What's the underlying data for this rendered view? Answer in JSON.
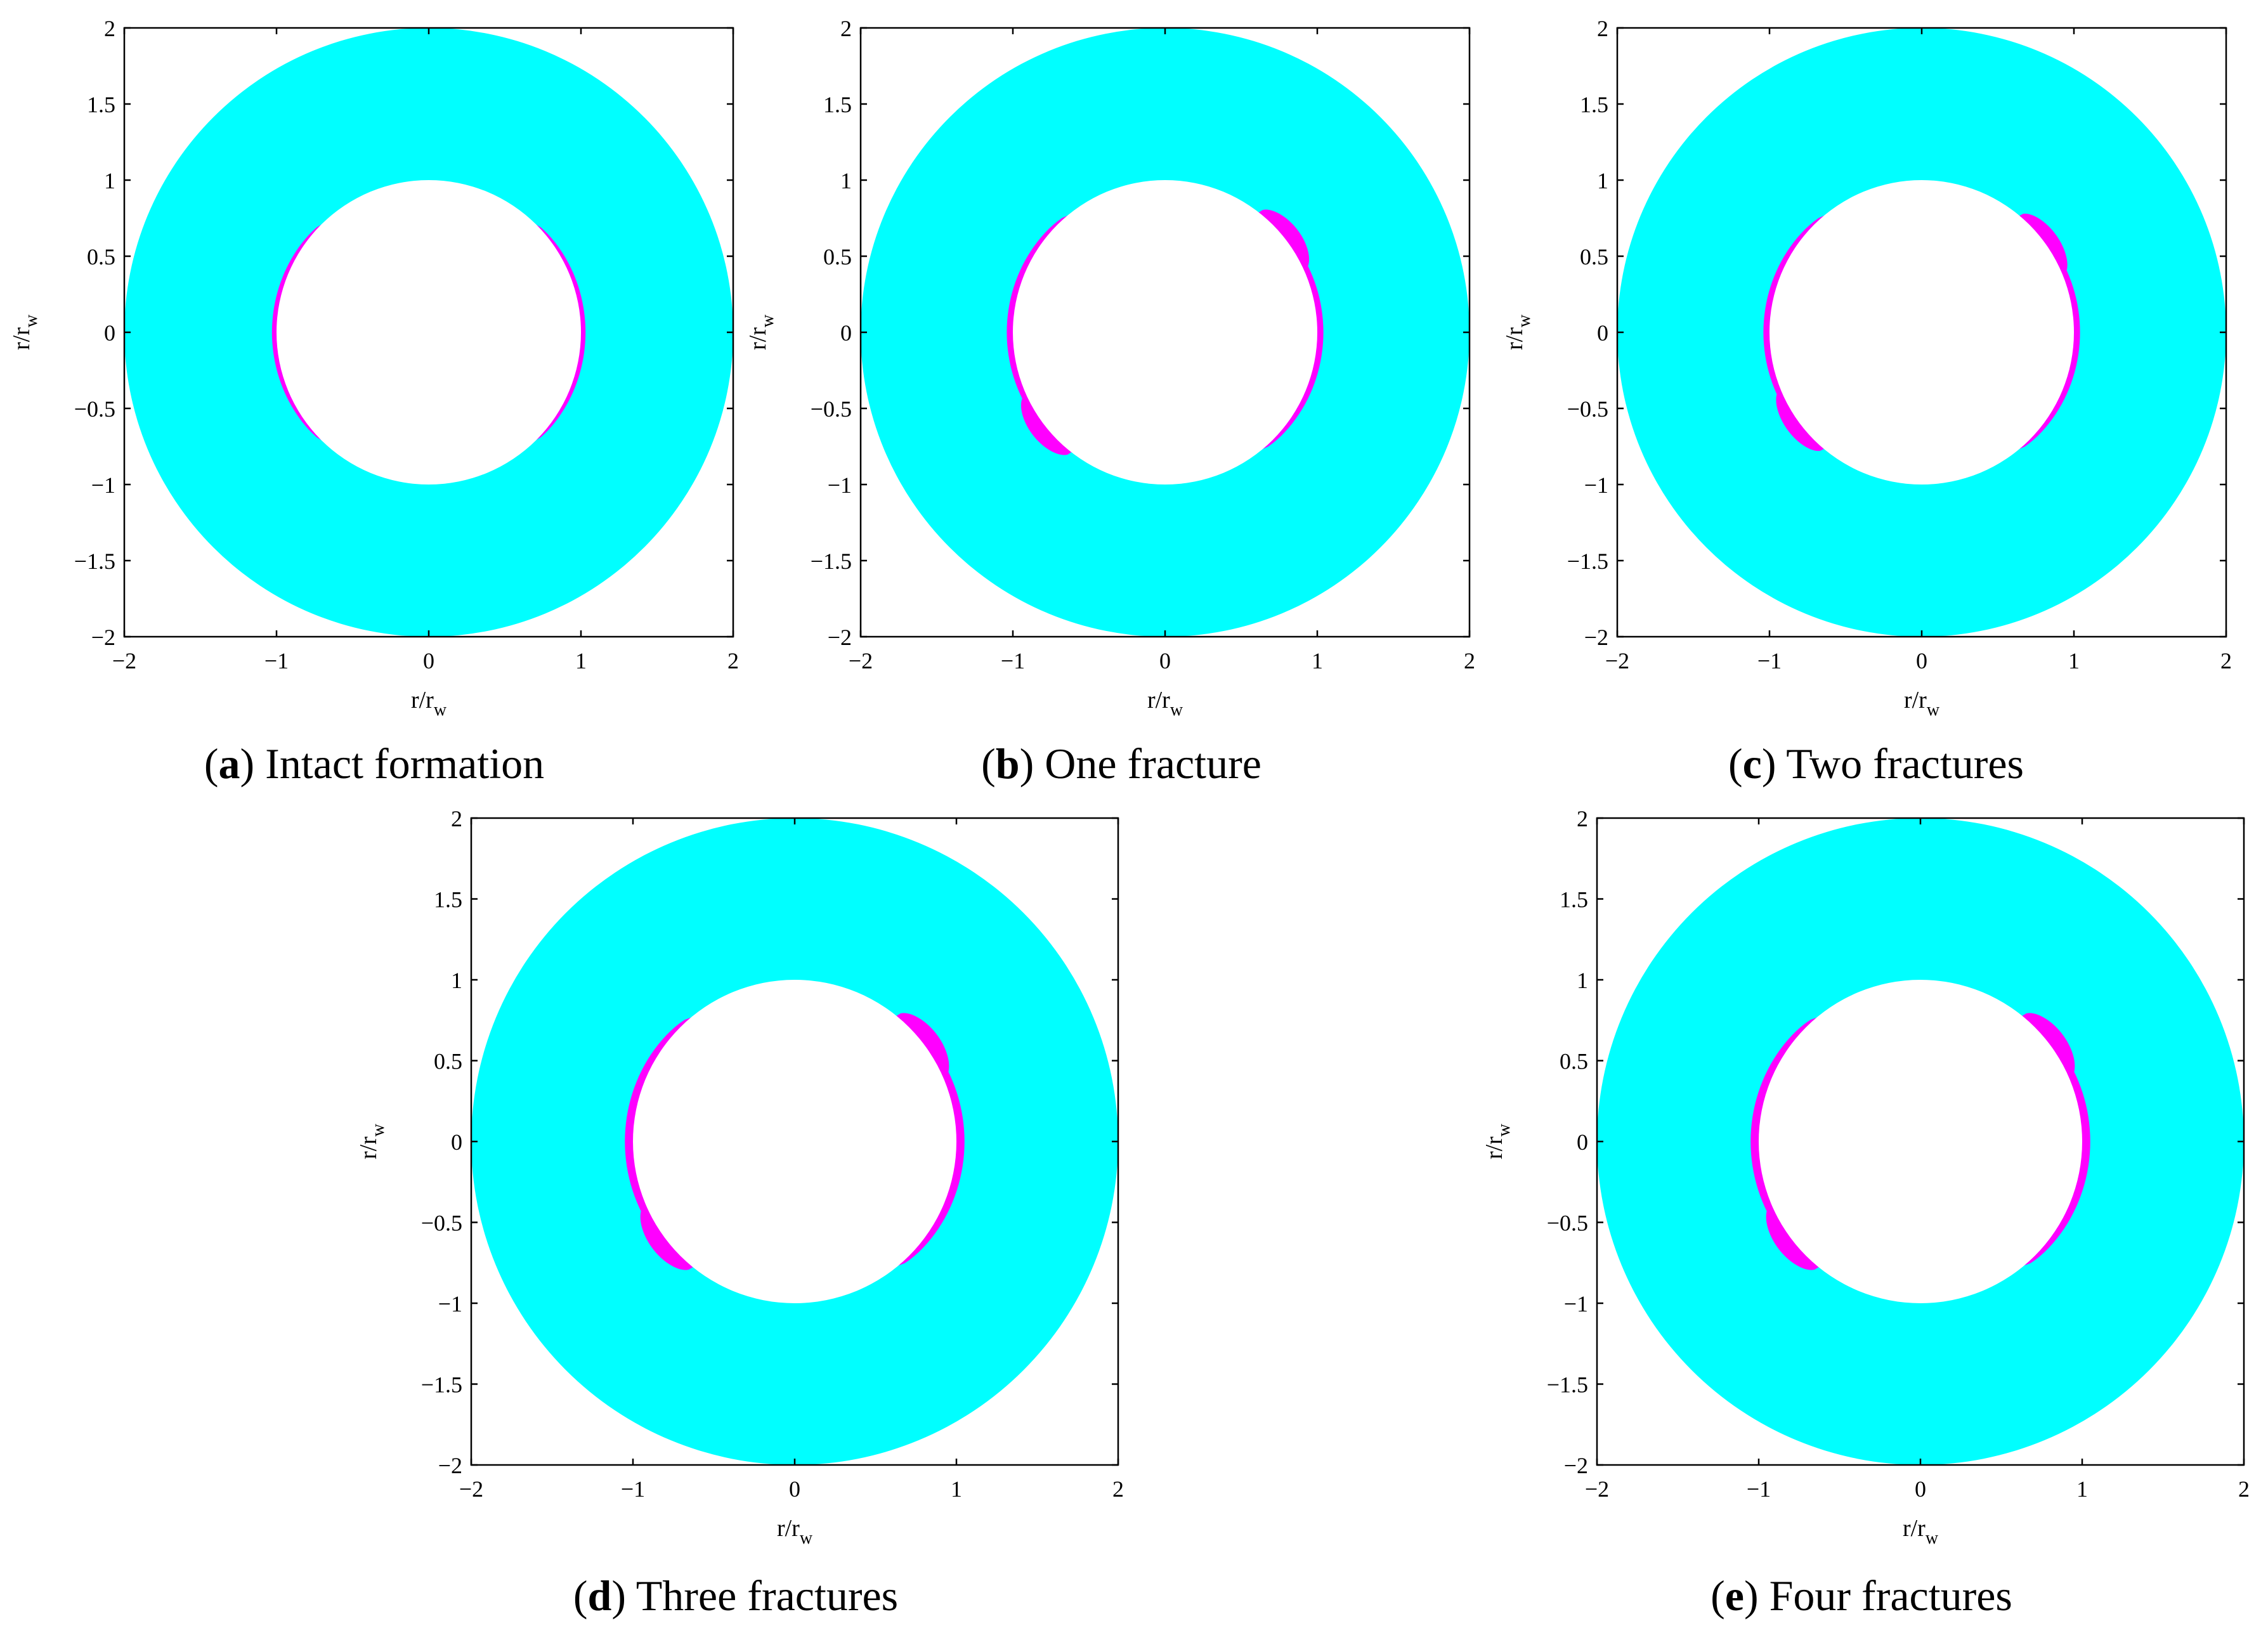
{
  "colors": {
    "stable_region": "#00ffff",
    "failure_region": "#ff00ff",
    "borehole": "#ffffff",
    "axes": "#000000"
  },
  "axis_text": {
    "xlabel_main": "r/r",
    "xlabel_sub": "w",
    "ylabel_main": "r/r",
    "ylabel_sub": "w"
  },
  "chart_data": [
    {
      "type": "area",
      "panel": "a",
      "caption_letter": "a",
      "caption_text": "Intact formation",
      "xlim": [
        -2,
        2
      ],
      "ylim": [
        -2,
        2
      ],
      "xticks": [
        -2,
        -1,
        0,
        1,
        2
      ],
      "yticks": [
        -2,
        -1.5,
        -1,
        -0.5,
        0,
        0.5,
        1,
        1.5,
        2
      ],
      "xtick_labels": [
        "−2",
        "−1",
        "0",
        "1",
        "2"
      ],
      "ytick_labels": [
        "−2",
        "−1.5",
        "−1",
        "−0.5",
        "0",
        "0.5",
        "1",
        "1.5",
        "2"
      ],
      "outer_radius": 2,
      "borehole_radius": 1,
      "failure_zones": [
        {
          "center_deg": 180,
          "half_width_deg": 45,
          "depth": 0.03
        },
        {
          "center_deg": 0,
          "half_width_deg": 45,
          "depth": 0.03
        }
      ]
    },
    {
      "type": "area",
      "panel": "b",
      "caption_letter": "b",
      "caption_text": "One fracture",
      "xlim": [
        -2,
        2
      ],
      "ylim": [
        -2,
        2
      ],
      "xticks": [
        -2,
        -1,
        0,
        1,
        2
      ],
      "yticks": [
        -2,
        -1.5,
        -1,
        -0.5,
        0,
        0.5,
        1,
        1.5,
        2
      ],
      "xtick_labels": [
        "−2",
        "−1",
        "0",
        "1",
        "2"
      ],
      "ytick_labels": [
        "−2",
        "−1.5",
        "−1",
        "−0.5",
        "0",
        "0.5",
        "1",
        "1.5",
        "2"
      ],
      "outer_radius": 2,
      "borehole_radius": 1,
      "failure_zones": [
        {
          "center_deg": 180,
          "half_width_deg": 50,
          "depth": 0.04
        },
        {
          "center_deg": 0,
          "half_width_deg": 50,
          "depth": 0.04
        },
        {
          "center_deg": 38,
          "half_width_deg": 14,
          "depth": 0.1
        },
        {
          "center_deg": 218,
          "half_width_deg": 14,
          "depth": 0.1
        }
      ]
    },
    {
      "type": "area",
      "panel": "c",
      "caption_letter": "c",
      "caption_text": "Two fractures",
      "xlim": [
        -2,
        2
      ],
      "ylim": [
        -2,
        2
      ],
      "xticks": [
        -2,
        -1,
        0,
        1,
        2
      ],
      "yticks": [
        -2,
        -1.5,
        -1,
        -0.5,
        0,
        0.5,
        1,
        1.5,
        2
      ],
      "xtick_labels": [
        "−2",
        "−1",
        "0",
        "1",
        "2"
      ],
      "ytick_labels": [
        "−2",
        "−1.5",
        "−1",
        "−0.5",
        "0",
        "0.5",
        "1",
        "1.5",
        "2"
      ],
      "outer_radius": 2,
      "borehole_radius": 1,
      "failure_zones": [
        {
          "center_deg": 180,
          "half_width_deg": 50,
          "depth": 0.04
        },
        {
          "center_deg": 0,
          "half_width_deg": 50,
          "depth": 0.04
        },
        {
          "center_deg": 36,
          "half_width_deg": 14,
          "depth": 0.09
        },
        {
          "center_deg": 216,
          "half_width_deg": 14,
          "depth": 0.09
        }
      ]
    },
    {
      "type": "area",
      "panel": "d",
      "caption_letter": "d",
      "caption_text": "Three fractures",
      "xlim": [
        -2,
        2
      ],
      "ylim": [
        -2,
        2
      ],
      "xticks": [
        -2,
        -1,
        0,
        1,
        2
      ],
      "yticks": [
        -2,
        -1.5,
        -1,
        -0.5,
        0,
        0.5,
        1,
        1.5,
        2
      ],
      "xtick_labels": [
        "−2",
        "−1",
        "0",
        "1",
        "2"
      ],
      "ytick_labels": [
        "−2",
        "−1.5",
        "−1",
        "−0.5",
        "0",
        "0.5",
        "1",
        "1.5",
        "2"
      ],
      "outer_radius": 2,
      "borehole_radius": 1,
      "failure_zones": [
        {
          "center_deg": 180,
          "half_width_deg": 50,
          "depth": 0.05
        },
        {
          "center_deg": 0,
          "half_width_deg": 50,
          "depth": 0.05
        },
        {
          "center_deg": 37,
          "half_width_deg": 14,
          "depth": 0.1
        },
        {
          "center_deg": 217,
          "half_width_deg": 14,
          "depth": 0.1
        }
      ]
    },
    {
      "type": "area",
      "panel": "e",
      "caption_letter": "e",
      "caption_text": "Four fractures",
      "xlim": [
        -2,
        2
      ],
      "ylim": [
        -2,
        2
      ],
      "xticks": [
        -2,
        -1,
        0,
        1,
        2
      ],
      "yticks": [
        -2,
        -1.5,
        -1,
        -0.5,
        0,
        0.5,
        1,
        1.5,
        2
      ],
      "xtick_labels": [
        "−2",
        "−1",
        "0",
        "1",
        "2"
      ],
      "ytick_labels": [
        "−2",
        "−1.5",
        "−1",
        "−0.5",
        "0",
        "0.5",
        "1",
        "1.5",
        "2"
      ],
      "outer_radius": 2,
      "borehole_radius": 1,
      "failure_zones": [
        {
          "center_deg": 180,
          "half_width_deg": 50,
          "depth": 0.05
        },
        {
          "center_deg": 0,
          "half_width_deg": 50,
          "depth": 0.05
        },
        {
          "center_deg": 37,
          "half_width_deg": 14,
          "depth": 0.1
        },
        {
          "center_deg": 217,
          "half_width_deg": 14,
          "depth": 0.1
        }
      ]
    }
  ]
}
